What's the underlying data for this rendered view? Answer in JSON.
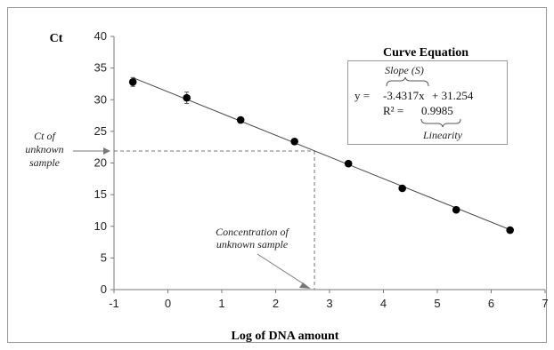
{
  "chart_data": {
    "type": "scatter",
    "ylabel": "Ct",
    "xlabel": "Log of DNA amount",
    "xlim": [
      -1,
      7
    ],
    "ylim": [
      0,
      40
    ],
    "x_ticks": [
      "-1",
      "0",
      "1",
      "2",
      "3",
      "4",
      "5",
      "6",
      "7"
    ],
    "y_ticks": [
      "0",
      "5",
      "10",
      "15",
      "20",
      "25",
      "30",
      "35",
      "40"
    ],
    "grid": false,
    "legend": "none",
    "series": [
      {
        "x": [
          -0.65,
          0.35,
          1.35,
          2.35,
          3.35,
          4.35,
          5.35,
          6.35
        ],
        "y": [
          32.8,
          30.3,
          26.8,
          23.4,
          19.9,
          16.0,
          12.6,
          9.4
        ],
        "error": [
          0.7,
          0.9,
          0.0,
          0.0,
          0.0,
          0.0,
          0.0,
          0.0
        ]
      }
    ],
    "trendline": {
      "slope": -3.4317,
      "intercept": 31.254,
      "x_range": [
        -0.65,
        6.35
      ]
    },
    "unknown_sample": {
      "x": 2.72,
      "y": 21.9
    },
    "annotations": {
      "ct_unknown": [
        "Ct of",
        "unknown",
        "sample"
      ],
      "concentration_unknown": [
        "Concentration of",
        "unknown sample"
      ]
    },
    "equation_box": {
      "title": "Curve Equation",
      "slope_label": "Slope (S)",
      "equation_y": "y =",
      "equation_slope": "-3.4317x",
      "equation_intercept": "+ 31.254",
      "r2_label": "R² =",
      "r2_value": "0.9985",
      "linearity_label": "Linearity"
    }
  }
}
